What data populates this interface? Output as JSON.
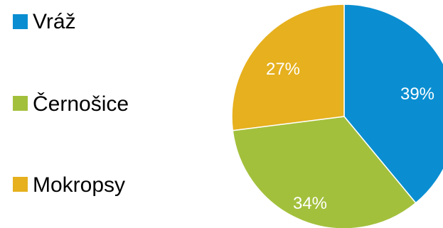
{
  "chart_data": {
    "type": "pie",
    "title": "",
    "legend_position": "left",
    "slices": [
      {
        "name": "Vráž",
        "value": 39,
        "label": "39%",
        "color": "#0a8ed1"
      },
      {
        "name": "Černošice",
        "value": 34,
        "label": "34%",
        "color": "#a3c03c"
      },
      {
        "name": "Mokropsy",
        "value": 27,
        "label": "27%",
        "color": "#e6b01e"
      }
    ]
  }
}
